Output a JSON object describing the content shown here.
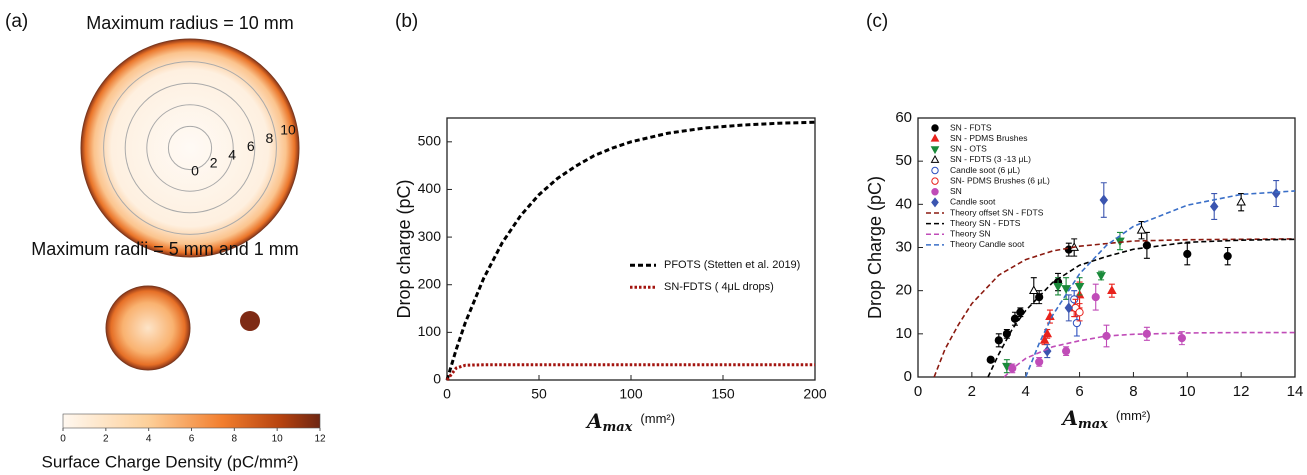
{
  "diagram": {
    "panel_label": "(a)",
    "title": "Maximum radius = 10 mm",
    "ring_labels": [
      0,
      2,
      4,
      6,
      8,
      10
    ],
    "subtitle": "Maximum radii = 5 mm and 1 mm",
    "colorbar": {
      "lim": [
        0,
        12
      ],
      "ticks": [
        0,
        2,
        4,
        6,
        8,
        10,
        12
      ],
      "label": "Surface Charge Density (pC/mm²)"
    }
  },
  "chart_data": [
    {
      "type": "line",
      "panel_label": "(b)",
      "ylabel": "Drop charge (pC)",
      "xlabel": {
        "symbol": "A",
        "subscript": "max",
        "unit": "(mm²)"
      },
      "xlim": [
        0,
        200
      ],
      "ylim": [
        0,
        550
      ],
      "xticks": [
        0,
        50,
        100,
        150,
        200
      ],
      "yticks": [
        0,
        100,
        200,
        300,
        400,
        500
      ],
      "legend": "center right",
      "x": [
        0,
        5,
        10,
        20,
        30,
        40,
        50,
        60,
        70,
        80,
        90,
        100,
        120,
        140,
        160,
        180,
        200
      ],
      "series": [
        {
          "name": "PFOTS (Stetten et al. 2019)",
          "color": "#000000",
          "line": "dashed",
          "values": [
            0,
            64,
            121,
            214,
            288,
            345,
            389,
            423,
            449,
            471,
            487,
            500,
            518,
            529,
            535,
            539,
            541
          ]
        },
        {
          "name": "SN-FDTS ( 4μL drops)",
          "color": "#a3140f",
          "line": "dotted",
          "values": [
            0,
            25,
            31,
            32,
            32,
            32,
            32,
            32,
            32,
            32,
            32,
            32,
            32,
            32,
            32,
            32,
            32
          ]
        }
      ]
    },
    {
      "type": "scatter",
      "panel_label": "(c)",
      "ylabel": "Drop Charge (pC)",
      "xlabel": {
        "symbol": "A",
        "subscript": "max",
        "unit": "(mm²)"
      },
      "xlim": [
        0,
        14
      ],
      "ylim": [
        0,
        60
      ],
      "xticks": [
        0,
        2,
        4,
        6,
        8,
        10,
        12,
        14
      ],
      "yticks": [
        0,
        10,
        20,
        30,
        40,
        50,
        60
      ],
      "legend": "upper left",
      "series": [
        {
          "name": "SN - FDTS",
          "color": "#000000",
          "marker": "circle",
          "filled": true,
          "x": [
            2.7,
            3.0,
            3.3,
            3.6,
            3.8,
            4.5,
            5.2,
            5.6,
            8.5,
            10,
            11.5
          ],
          "values": [
            4,
            8.5,
            10,
            13.5,
            15,
            18.5,
            22,
            29.5,
            30.5,
            28.5,
            28
          ],
          "errors": [
            0.5,
            1.5,
            1,
            1.5,
            1,
            1.5,
            2,
            1.5,
            3,
            2.5,
            2
          ]
        },
        {
          "name": "SN - PDMS Brushes",
          "color": "#e8221c",
          "marker": "triangle-up",
          "filled": true,
          "x": [
            4.7,
            4.8,
            4.9,
            5.8,
            6.0,
            7.2
          ],
          "values": [
            8.5,
            10,
            14,
            16,
            19,
            20
          ],
          "errors": [
            1,
            1,
            1.5,
            2,
            3,
            1.5
          ]
        },
        {
          "name": "SN - OTS",
          "color": "#1a8a3a",
          "marker": "triangle-down",
          "filled": true,
          "x": [
            3.3,
            5.2,
            5.5,
            6.0,
            6.8,
            7.5
          ],
          "values": [
            2.5,
            21,
            20.5,
            21,
            23.5,
            31.5
          ],
          "errors": [
            1.5,
            2,
            2.5,
            2,
            1,
            2
          ]
        },
        {
          "name": "SN - FDTS (3 -13 μL)",
          "color": "#000000",
          "marker": "triangle-up",
          "filled": false,
          "x": [
            4.3,
            5.8,
            8.3,
            12.0
          ],
          "values": [
            20,
            30,
            34,
            40.5
          ],
          "errors": [
            3,
            2,
            2,
            2
          ]
        },
        {
          "name": "Candle soot (6 μL)",
          "color": "#2b4fbf",
          "marker": "circle",
          "filled": false,
          "x": [
            5.9,
            5.8
          ],
          "values": [
            12.5,
            18
          ],
          "errors": [
            3,
            2
          ]
        },
        {
          "name": "SN- PDMS Brushes (6 μL)",
          "color": "#e8221c",
          "marker": "circle",
          "filled": false,
          "x": [
            5.85,
            6.0
          ],
          "values": [
            16,
            15
          ],
          "errors": [
            2,
            2
          ]
        },
        {
          "name": "SN",
          "color": "#c04cb8",
          "marker": "circle",
          "filled": true,
          "x": [
            3.5,
            4.5,
            5.5,
            6.6,
            7.0,
            8.5,
            9.8
          ],
          "values": [
            2,
            3.5,
            6,
            18.5,
            9.5,
            10,
            9
          ],
          "errors": [
            1,
            1,
            1,
            3,
            2.5,
            1.5,
            1.5
          ]
        },
        {
          "name": "Candle soot",
          "color": "#3b55b0",
          "marker": "diamond",
          "filled": true,
          "x": [
            4.8,
            5.6,
            6.9,
            11.0,
            13.3
          ],
          "values": [
            6,
            16,
            41,
            39.5,
            42.5
          ],
          "errors": [
            1.5,
            3,
            4,
            3,
            3
          ]
        },
        {
          "name": "Theory offset SN - FDTS",
          "color": "#8b1a10",
          "line": "dashed",
          "x": [
            0.6,
            1,
            1.5,
            2,
            3,
            4,
            5,
            6,
            8,
            10,
            12,
            14
          ],
          "values": [
            0,
            6.4,
            12.1,
            17.0,
            23.6,
            27.2,
            29.2,
            30.3,
            31.5,
            31.8,
            31.9,
            32.0
          ]
        },
        {
          "name": "Theory SN - FDTS",
          "color": "#000000",
          "line": "dashed",
          "x": [
            2.6,
            3,
            3.5,
            4,
            5,
            6,
            7,
            8,
            10,
            12,
            14
          ],
          "values": [
            0,
            5.3,
            11.1,
            15.4,
            21.9,
            25.9,
            27.9,
            29.6,
            31.2,
            31.7,
            31.9
          ]
        },
        {
          "name": "Theory SN",
          "color": "#c04cb8",
          "line": "dashed",
          "x": [
            3.2,
            3.6,
            4,
            5,
            6,
            7,
            8,
            10,
            12,
            14
          ],
          "values": [
            0,
            2.4,
            4.3,
            7.0,
            8.4,
            9.5,
            9.9,
            10.2,
            10.3,
            10.3
          ]
        },
        {
          "name": "Theory Candle soot",
          "color": "#3a6fc8",
          "line": "dashed",
          "x": [
            4,
            4.5,
            5,
            6,
            7,
            8,
            10,
            12,
            14
          ],
          "values": [
            0,
            7.8,
            14.3,
            23.9,
            30.5,
            34.9,
            39.8,
            42.3,
            43.1
          ]
        }
      ]
    }
  ]
}
